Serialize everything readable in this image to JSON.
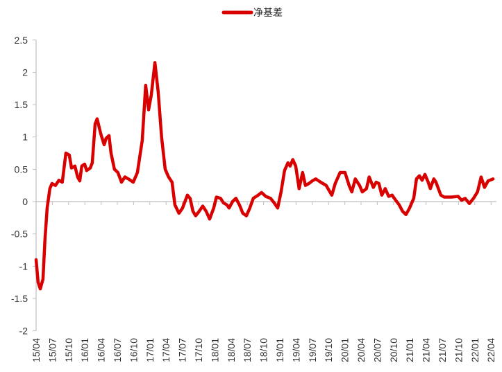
{
  "chart_data": {
    "type": "line",
    "title": "",
    "xlabel": "",
    "ylabel": "",
    "legend": {
      "placement": "top",
      "entries": [
        "净基差"
      ]
    },
    "grid": false,
    "zero_line": true,
    "ylim": [
      -2,
      2.5
    ],
    "yticks": [
      "2.5",
      "2",
      "1.5",
      "1",
      "0.5",
      "0",
      "-0.5",
      "-1",
      "-1.5",
      "-2"
    ],
    "xticks": [
      "15/04",
      "15/07",
      "15/10",
      "16/01",
      "16/04",
      "16/07",
      "16/10",
      "17/01",
      "17/04",
      "17/07",
      "17/10",
      "18/01",
      "18/04",
      "18/07",
      "18/10",
      "19/01",
      "19/04",
      "19/07",
      "19/10",
      "20/01",
      "20/04",
      "20/07",
      "20/10",
      "21/01",
      "21/04",
      "21/07",
      "21/10",
      "22/01",
      "22/04"
    ],
    "series": [
      {
        "name": "净基差",
        "color": "#D90000",
        "points": [
          [
            "2015-04-01",
            -0.9
          ],
          [
            "2015-04-12",
            -1.25
          ],
          [
            "2015-04-24",
            -1.35
          ],
          [
            "2015-05-09",
            -1.2
          ],
          [
            "2015-05-20",
            -0.6
          ],
          [
            "2015-06-02",
            -0.1
          ],
          [
            "2015-06-17",
            0.2
          ],
          [
            "2015-06-29",
            0.28
          ],
          [
            "2015-07-18",
            0.25
          ],
          [
            "2015-08-07",
            0.33
          ],
          [
            "2015-08-26",
            0.3
          ],
          [
            "2015-09-16",
            0.75
          ],
          [
            "2015-10-05",
            0.72
          ],
          [
            "2015-10-17",
            0.52
          ],
          [
            "2015-11-06",
            0.55
          ],
          [
            "2015-11-21",
            0.38
          ],
          [
            "2015-12-03",
            0.32
          ],
          [
            "2015-12-14",
            0.55
          ],
          [
            "2015-12-30",
            0.58
          ],
          [
            "2016-01-11",
            0.48
          ],
          [
            "2016-02-01",
            0.52
          ],
          [
            "2016-02-12",
            0.6
          ],
          [
            "2016-02-28",
            1.2
          ],
          [
            "2016-03-09",
            1.28
          ],
          [
            "2016-03-29",
            1.05
          ],
          [
            "2016-04-18",
            0.88
          ],
          [
            "2016-04-29",
            0.98
          ],
          [
            "2016-05-15",
            1.02
          ],
          [
            "2016-05-26",
            0.75
          ],
          [
            "2016-06-15",
            0.5
          ],
          [
            "2016-07-04",
            0.45
          ],
          [
            "2016-07-24",
            0.3
          ],
          [
            "2016-08-13",
            0.38
          ],
          [
            "2016-09-02",
            0.35
          ],
          [
            "2016-09-29",
            0.3
          ],
          [
            "2016-10-22",
            0.45
          ],
          [
            "2016-11-19",
            0.95
          ],
          [
            "2016-12-08",
            1.8
          ],
          [
            "2016-12-24",
            1.42
          ],
          [
            "2017-01-09",
            1.65
          ],
          [
            "2017-01-29",
            2.15
          ],
          [
            "2017-02-17",
            1.7
          ],
          [
            "2017-03-06",
            1.0
          ],
          [
            "2017-03-26",
            0.5
          ],
          [
            "2017-04-15",
            0.38
          ],
          [
            "2017-05-04",
            0.3
          ],
          [
            "2017-05-20",
            -0.05
          ],
          [
            "2017-06-12",
            -0.18
          ],
          [
            "2017-07-02",
            -0.1
          ],
          [
            "2017-07-29",
            0.1
          ],
          [
            "2017-08-14",
            0.05
          ],
          [
            "2017-08-30",
            -0.15
          ],
          [
            "2017-09-15",
            -0.22
          ],
          [
            "2017-10-04",
            -0.15
          ],
          [
            "2017-10-24",
            -0.07
          ],
          [
            "2017-11-13",
            -0.15
          ],
          [
            "2017-12-02",
            -0.27
          ],
          [
            "2017-12-25",
            -0.1
          ],
          [
            "2018-01-10",
            0.07
          ],
          [
            "2018-02-03",
            0.05
          ],
          [
            "2018-02-19",
            -0.02
          ],
          [
            "2018-03-08",
            -0.05
          ],
          [
            "2018-03-20",
            -0.1
          ],
          [
            "2018-04-09",
            0.0
          ],
          [
            "2018-04-28",
            0.05
          ],
          [
            "2018-05-17",
            -0.05
          ],
          [
            "2018-06-06",
            -0.18
          ],
          [
            "2018-06-26",
            -0.22
          ],
          [
            "2018-07-15",
            -0.1
          ],
          [
            "2018-08-04",
            0.05
          ],
          [
            "2018-09-01",
            0.1
          ],
          [
            "2018-09-20",
            0.14
          ],
          [
            "2018-10-13",
            0.08
          ],
          [
            "2018-11-10",
            0.05
          ],
          [
            "2018-11-30",
            -0.02
          ],
          [
            "2018-12-19",
            -0.1
          ],
          [
            "2019-01-08",
            0.15
          ],
          [
            "2019-01-27",
            0.48
          ],
          [
            "2019-02-16",
            0.6
          ],
          [
            "2019-02-28",
            0.55
          ],
          [
            "2019-03-13",
            0.65
          ],
          [
            "2019-03-29",
            0.55
          ],
          [
            "2019-04-18",
            0.2
          ],
          [
            "2019-05-07",
            0.45
          ],
          [
            "2019-05-23",
            0.25
          ],
          [
            "2019-06-12",
            0.28
          ],
          [
            "2019-07-01",
            0.32
          ],
          [
            "2019-07-20",
            0.35
          ],
          [
            "2019-08-17",
            0.3
          ],
          [
            "2019-09-18",
            0.25
          ],
          [
            "2019-10-19",
            0.1
          ],
          [
            "2019-11-08",
            0.28
          ],
          [
            "2019-12-05",
            0.45
          ],
          [
            "2020-01-02",
            0.45
          ],
          [
            "2020-01-25",
            0.25
          ],
          [
            "2020-02-10",
            0.15
          ],
          [
            "2020-02-29",
            0.35
          ],
          [
            "2020-03-23",
            0.25
          ],
          [
            "2020-04-08",
            0.15
          ],
          [
            "2020-05-01",
            0.2
          ],
          [
            "2020-05-16",
            0.38
          ],
          [
            "2020-06-09",
            0.22
          ],
          [
            "2020-06-25",
            0.3
          ],
          [
            "2020-07-10",
            0.28
          ],
          [
            "2020-07-26",
            0.1
          ],
          [
            "2020-08-15",
            0.2
          ],
          [
            "2020-09-04",
            0.08
          ],
          [
            "2020-09-23",
            0.1
          ],
          [
            "2020-10-13",
            0.02
          ],
          [
            "2020-11-02",
            -0.05
          ],
          [
            "2020-11-21",
            -0.15
          ],
          [
            "2020-12-10",
            -0.2
          ],
          [
            "2020-12-30",
            -0.1
          ],
          [
            "2021-01-23",
            0.05
          ],
          [
            "2021-02-08",
            0.35
          ],
          [
            "2021-02-24",
            0.4
          ],
          [
            "2021-03-09",
            0.33
          ],
          [
            "2021-03-25",
            0.42
          ],
          [
            "2021-04-13",
            0.3
          ],
          [
            "2021-04-25",
            0.2
          ],
          [
            "2021-05-14",
            0.35
          ],
          [
            "2021-05-26",
            0.3
          ],
          [
            "2021-06-23",
            0.1
          ],
          [
            "2021-07-12",
            0.07
          ],
          [
            "2021-08-20",
            0.07
          ],
          [
            "2021-09-29",
            0.08
          ],
          [
            "2021-10-18",
            0.02
          ],
          [
            "2021-11-07",
            0.05
          ],
          [
            "2021-12-01",
            -0.03
          ],
          [
            "2021-12-24",
            0.05
          ],
          [
            "2022-01-16",
            0.15
          ],
          [
            "2022-02-06",
            0.38
          ],
          [
            "2022-02-25",
            0.22
          ],
          [
            "2022-03-15",
            0.32
          ],
          [
            "2022-04-12",
            0.35
          ]
        ]
      }
    ]
  }
}
